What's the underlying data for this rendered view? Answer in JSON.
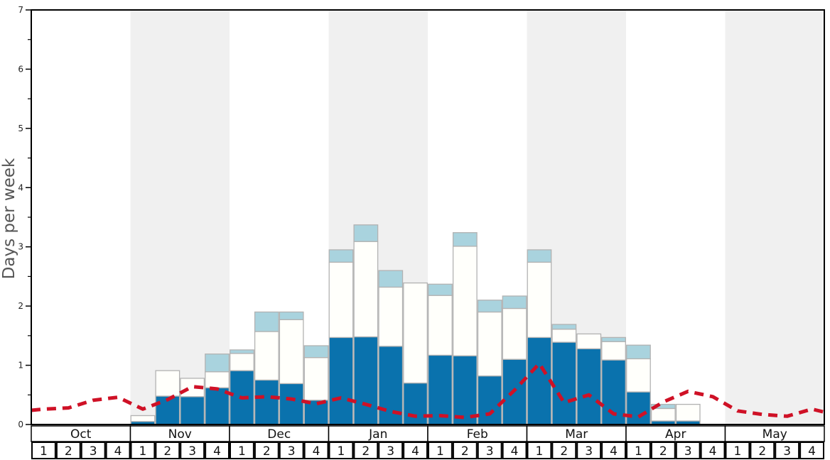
{
  "chart_data": {
    "type": "bar+line",
    "title": "",
    "ylabel": "Days per week",
    "ylim": [
      0,
      7
    ],
    "grid": false,
    "legend": "none",
    "y_tick_labels": [
      "0",
      "1",
      "2",
      "3",
      "4",
      "5",
      "6",
      "7"
    ],
    "y_minor_tick_step": 0.5,
    "months": [
      "Oct",
      "Nov",
      "Dec",
      "Jan",
      "Feb",
      "Mar",
      "Apr",
      "May"
    ],
    "weeks_per_month": 4,
    "week_labels": [
      "1",
      "2",
      "3",
      "4"
    ],
    "shaded_months": [
      "Nov",
      "Jan",
      "Mar",
      "May"
    ],
    "colors": {
      "dark_blue": "#0a72ad",
      "bar_white": "#fffffb",
      "light_blue": "#a9d3de",
      "band_gray": "#f0f0f0",
      "bar_border": "#b2b2b2",
      "line_red": "#cf1126",
      "frame": "#000000"
    },
    "series": [
      {
        "name": "dark-blue-bars",
        "type": "bar-segment",
        "color": "#0a72ad",
        "values": [
          0,
          0,
          0,
          0,
          0.05,
          0.48,
          0.47,
          0.62,
          0.91,
          0.75,
          0.69,
          0.41,
          1.47,
          1.48,
          1.32,
          0.7,
          1.17,
          1.16,
          0.82,
          1.1,
          1.47,
          1.39,
          1.28,
          1.09,
          0.55,
          0.06,
          0.06,
          0,
          0,
          0,
          0,
          0
        ]
      },
      {
        "name": "white-bars",
        "type": "bar-segment",
        "color": "#fffffb",
        "values": [
          0,
          0,
          0,
          0,
          0.1,
          0.43,
          0.31,
          0.27,
          0.29,
          0.82,
          1.08,
          0.72,
          1.27,
          1.61,
          1.0,
          1.69,
          1.01,
          1.85,
          1.08,
          0.86,
          1.27,
          0.22,
          0.25,
          0.31,
          0.56,
          0.21,
          0.28,
          0,
          0,
          0,
          0,
          0
        ]
      },
      {
        "name": "light-blue-bars",
        "type": "bar-segment",
        "color": "#a9d3de",
        "values": [
          0,
          0,
          0,
          0,
          0,
          0,
          0,
          0.3,
          0.06,
          0.33,
          0.13,
          0.2,
          0.21,
          0.28,
          0.28,
          0,
          0.19,
          0.23,
          0.2,
          0.21,
          0.21,
          0.08,
          0,
          0.07,
          0.23,
          0.07,
          0,
          0,
          0,
          0,
          0,
          0
        ]
      },
      {
        "name": "red-dashed-line",
        "type": "line",
        "color": "#cf1126",
        "dash": [
          13,
          9
        ],
        "edge_start": 0.24,
        "edge_end": 0.21,
        "values": [
          0.26,
          0.28,
          0.41,
          0.46,
          0.26,
          0.42,
          0.64,
          0.6,
          0.45,
          0.47,
          0.43,
          0.35,
          0.45,
          0.34,
          0.22,
          0.14,
          0.15,
          0.12,
          0.18,
          0.58,
          1.03,
          0.37,
          0.5,
          0.18,
          0.13,
          0.38,
          0.56,
          0.47,
          0.23,
          0.17,
          0.14,
          0.26
        ]
      }
    ]
  }
}
